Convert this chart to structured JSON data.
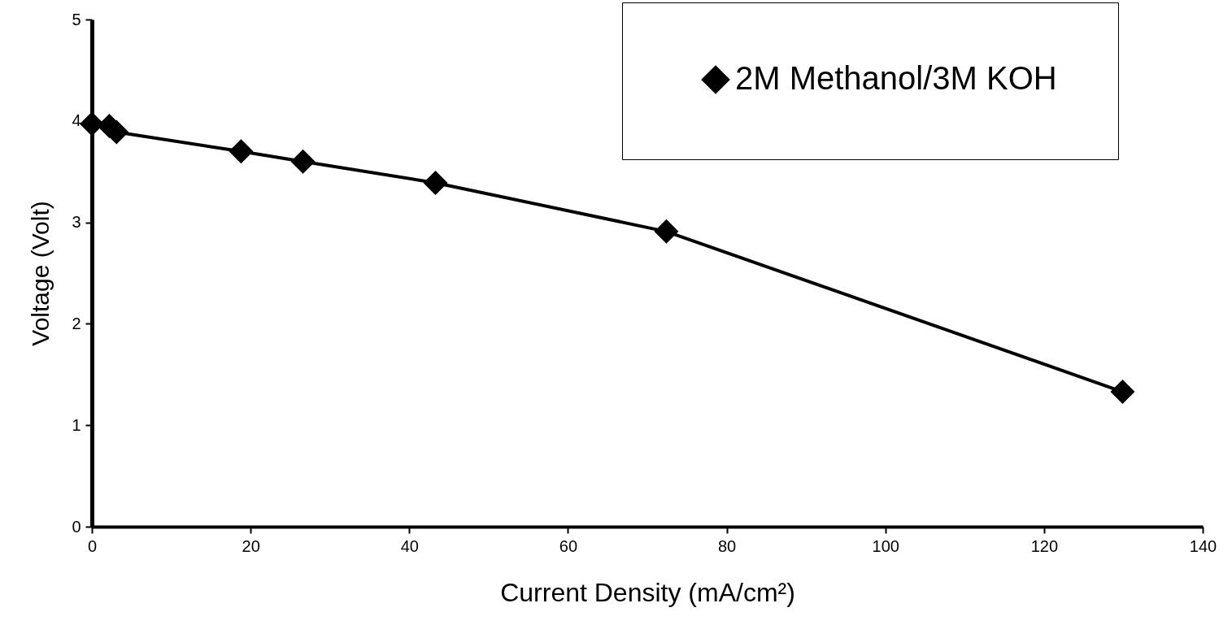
{
  "chart_data": {
    "type": "line",
    "xlabel": "Current Density (mA/cm²)",
    "ylabel": "Voltage (Volt)",
    "xlim": [
      0,
      140
    ],
    "xticks": [
      0,
      20,
      40,
      60,
      80,
      100,
      120,
      140
    ],
    "ylim": [
      0,
      5
    ],
    "yticks": [
      0,
      1,
      2,
      3,
      4,
      5
    ],
    "x": [
      0,
      2.2,
      3.1,
      18.8,
      26.6,
      43.3,
      72.4,
      129.9
    ],
    "series": [
      {
        "name": "2M Methanol/3M KOH",
        "color": "#000000",
        "values": [
          3.97,
          3.95,
          3.89,
          3.7,
          3.6,
          3.39,
          2.91,
          1.33
        ]
      }
    ],
    "marker": "diamond",
    "line_style": "solid",
    "grid": false,
    "legend": "top right"
  }
}
